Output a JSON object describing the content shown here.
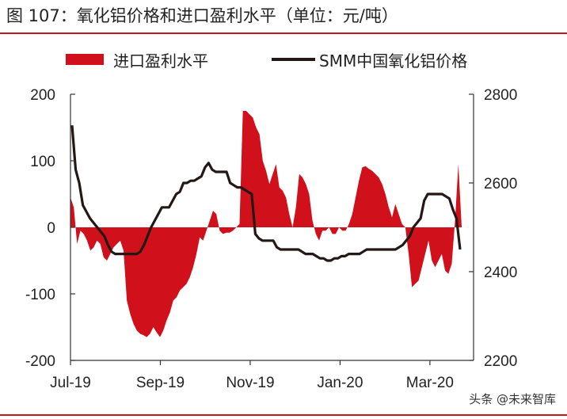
{
  "title": "图 107：氧化铝价格和进口盈利水平（单位：元/吨）",
  "watermark": "头条 @未来智库",
  "colors": {
    "area": "#d0101a",
    "line": "#231815",
    "rule": "#c0181d"
  },
  "chart_data": {
    "type": "area+line",
    "x_tick_labels": [
      "Jul-19",
      "Sep-19",
      "Nov-19",
      "Jan-20",
      "Mar-20"
    ],
    "y_left": {
      "ticks": [
        200,
        100,
        0,
        -100,
        -200
      ],
      "range": [
        -200,
        200
      ]
    },
    "y_right": {
      "ticks": [
        2800,
        2600,
        2400,
        2200
      ],
      "range": [
        2200,
        2800
      ]
    },
    "series": [
      {
        "name": "进口盈利水平",
        "type": "area",
        "axis": "left",
        "values": [
          45,
          30,
          -25,
          -5,
          -10,
          -20,
          -35,
          -30,
          -20,
          -25,
          -45,
          -50,
          -40,
          -30,
          -25,
          -20,
          -35,
          -110,
          -130,
          -145,
          -155,
          -160,
          -162,
          -165,
          -160,
          -150,
          -158,
          -165,
          -155,
          -140,
          -128,
          -110,
          -105,
          -95,
          -90,
          -85,
          -75,
          -60,
          -40,
          -15,
          -20,
          -5,
          10,
          25,
          20,
          -5,
          -10,
          -8,
          -8,
          -5,
          0,
          5,
          175,
          175,
          170,
          165,
          150,
          140,
          100,
          85,
          65,
          80,
          95,
          60,
          55,
          45,
          20,
          0,
          30,
          80,
          75,
          65,
          50,
          10,
          -10,
          -20,
          -5,
          -5,
          0,
          -10,
          -10,
          0,
          -5,
          -5,
          5,
          20,
          45,
          70,
          90,
          92,
          88,
          85,
          80,
          75,
          65,
          50,
          30,
          15,
          35,
          20,
          5,
          0,
          -40,
          -90,
          -85,
          -80,
          -60,
          -40,
          -20,
          -50,
          -60,
          -50,
          -40,
          -65,
          -70,
          -55,
          10,
          95,
          0
        ]
      },
      {
        "name": "SMM中国氧化铝价格",
        "type": "line",
        "axis": "right",
        "values": [
          2730,
          2630,
          2600,
          2550,
          2535,
          2520,
          2510,
          2500,
          2490,
          2480,
          2460,
          2445,
          2440,
          2440,
          2440,
          2440,
          2440,
          2440,
          2440,
          2445,
          2460,
          2480,
          2500,
          2515,
          2530,
          2545,
          2545,
          2545,
          2560,
          2575,
          2580,
          2600,
          2600,
          2605,
          2605,
          2610,
          2615,
          2635,
          2645,
          2630,
          2625,
          2625,
          2625,
          2625,
          2600,
          2595,
          2590,
          2590,
          2585,
          2580,
          2575,
          2485,
          2475,
          2470,
          2470,
          2470,
          2470,
          2455,
          2450,
          2450,
          2450,
          2450,
          2450,
          2450,
          2445,
          2440,
          2440,
          2440,
          2435,
          2430,
          2430,
          2425,
          2425,
          2430,
          2430,
          2435,
          2435,
          2440,
          2440,
          2440,
          2440,
          2445,
          2450,
          2450,
          2450,
          2450,
          2450,
          2450,
          2450,
          2450,
          2450,
          2455,
          2460,
          2470,
          2480,
          2500,
          2510,
          2520,
          2560,
          2575,
          2575,
          2575,
          2575,
          2575,
          2570,
          2565,
          2540,
          2520,
          2450
        ]
      }
    ],
    "legend": {
      "position": "top",
      "labels": [
        "进口盈利水平",
        "SMM中国氧化铝价格"
      ]
    }
  }
}
